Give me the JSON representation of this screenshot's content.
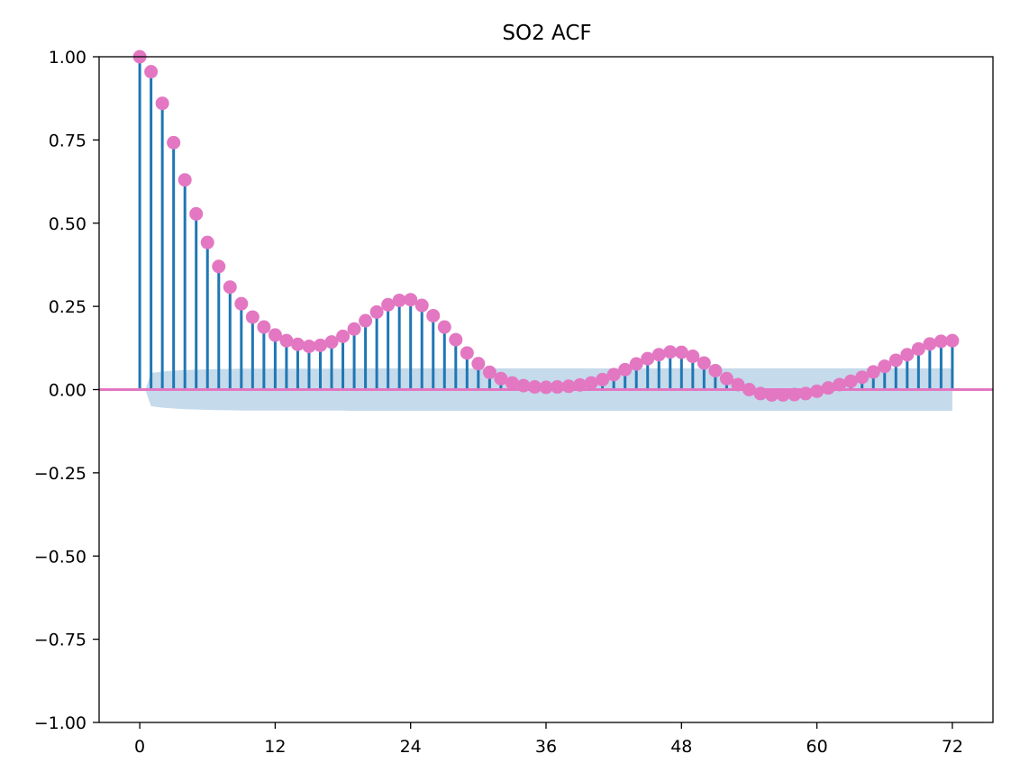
{
  "chart_data": {
    "type": "stem",
    "title": "SO2 ACF",
    "xlabel": "",
    "ylabel": "",
    "xlim": [
      -3.6,
      75.6
    ],
    "ylim": [
      -1.0,
      1.0
    ],
    "x_ticks": [
      0,
      12,
      24,
      36,
      48,
      60,
      72
    ],
    "x_tick_labels": [
      "0",
      "12",
      "24",
      "36",
      "48",
      "60",
      "72"
    ],
    "y_ticks": [
      -1.0,
      -0.75,
      -0.5,
      -0.25,
      0.0,
      0.25,
      0.5,
      0.75,
      1.0
    ],
    "y_tick_labels": [
      "−1.00",
      "−0.75",
      "−0.50",
      "−0.25",
      "0.00",
      "0.25",
      "0.50",
      "0.75",
      "1.00"
    ],
    "grid": false,
    "lags": [
      0,
      1,
      2,
      3,
      4,
      5,
      6,
      7,
      8,
      9,
      10,
      11,
      12,
      13,
      14,
      15,
      16,
      17,
      18,
      19,
      20,
      21,
      22,
      23,
      24,
      25,
      26,
      27,
      28,
      29,
      30,
      31,
      32,
      33,
      34,
      35,
      36,
      37,
      38,
      39,
      40,
      41,
      42,
      43,
      44,
      45,
      46,
      47,
      48,
      49,
      50,
      51,
      52,
      53,
      54,
      55,
      56,
      57,
      58,
      59,
      60,
      61,
      62,
      63,
      64,
      65,
      66,
      67,
      68,
      69,
      70,
      71,
      72
    ],
    "acf": [
      1.0,
      0.955,
      0.86,
      0.742,
      0.63,
      0.528,
      0.442,
      0.37,
      0.308,
      0.258,
      0.218,
      0.188,
      0.164,
      0.147,
      0.136,
      0.13,
      0.133,
      0.143,
      0.16,
      0.182,
      0.207,
      0.233,
      0.255,
      0.268,
      0.27,
      0.253,
      0.222,
      0.188,
      0.15,
      0.11,
      0.078,
      0.052,
      0.033,
      0.02,
      0.012,
      0.008,
      0.007,
      0.008,
      0.01,
      0.014,
      0.02,
      0.03,
      0.045,
      0.06,
      0.077,
      0.093,
      0.105,
      0.113,
      0.112,
      0.1,
      0.08,
      0.057,
      0.033,
      0.015,
      0.0,
      -0.012,
      -0.016,
      -0.016,
      -0.015,
      -0.012,
      -0.005,
      0.005,
      0.015,
      0.025,
      0.037,
      0.053,
      0.07,
      0.088,
      0.105,
      0.122,
      0.137,
      0.145,
      0.147
    ],
    "confidence_upper": [
      0.0,
      0.05,
      0.054,
      0.057,
      0.059,
      0.06,
      0.061,
      0.062,
      0.062,
      0.063,
      0.063,
      0.063,
      0.063,
      0.063,
      0.063,
      0.063,
      0.063,
      0.063,
      0.063,
      0.064,
      0.064,
      0.064,
      0.064,
      0.064,
      0.064,
      0.064,
      0.064,
      0.064,
      0.064,
      0.064,
      0.064,
      0.064,
      0.064,
      0.064,
      0.064,
      0.064,
      0.064,
      0.064,
      0.064,
      0.064,
      0.064,
      0.064,
      0.064,
      0.064,
      0.064,
      0.064,
      0.064,
      0.064,
      0.064,
      0.064,
      0.064,
      0.064,
      0.064,
      0.064,
      0.064,
      0.064,
      0.064,
      0.064,
      0.064,
      0.064,
      0.064,
      0.064,
      0.064,
      0.064,
      0.064,
      0.064,
      0.064,
      0.064,
      0.064,
      0.064,
      0.064,
      0.064,
      0.064
    ],
    "colors": {
      "stem": "#1f77b4",
      "marker": "#e377c2",
      "zero_line": "#e377c2",
      "confidence": "#c5daeb"
    }
  }
}
